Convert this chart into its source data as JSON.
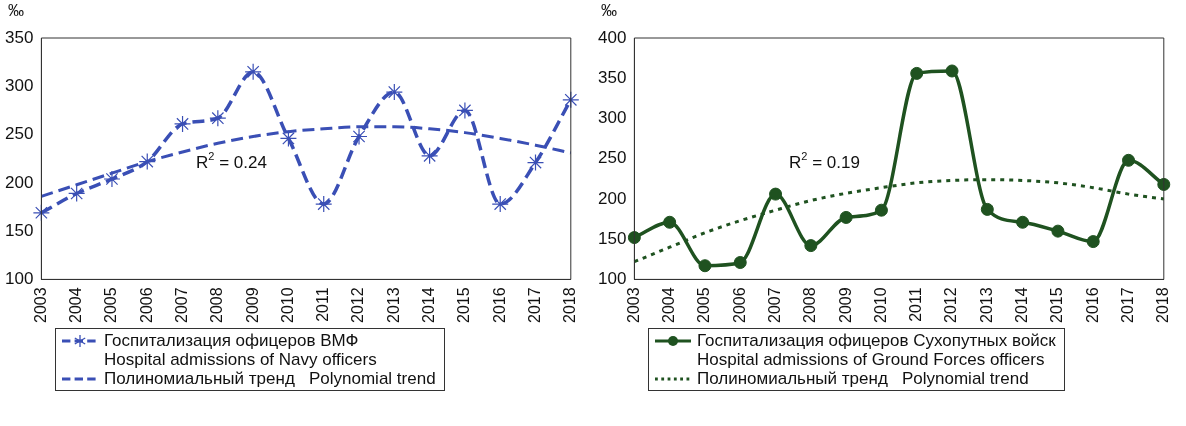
{
  "chart_data": [
    {
      "type": "line",
      "ylabel": "‰",
      "categories": [
        "2003",
        "2004",
        "2005",
        "2006",
        "2007",
        "2008",
        "2009",
        "2010",
        "2011",
        "2012",
        "2013",
        "2014",
        "2015",
        "2016",
        "2017",
        "2018"
      ],
      "ylim": [
        100,
        350
      ],
      "yticks": [
        100,
        150,
        200,
        250,
        300,
        350
      ],
      "grid": false,
      "legend": "bottom",
      "series": [
        {
          "name": "Госпитализация офицеров ВМФ\nHospital admissions of Navy officers",
          "color": "#3a4fb5",
          "marker": "cross",
          "line_style": "dashed",
          "values": [
            169,
            189,
            204,
            222,
            261,
            267,
            315,
            246,
            178,
            248,
            294,
            228,
            275,
            178,
            221,
            286
          ]
        },
        {
          "name": "Полиномиальный тренд   Polynomial trend",
          "color": "#3a4fb5",
          "marker": "none",
          "line_style": "dashed",
          "values": [
            186,
            198,
            210,
            222,
            232,
            241,
            248,
            253,
            256,
            258,
            258,
            256,
            252,
            246,
            239,
            231
          ]
        }
      ],
      "annotations": [
        "R$^{2}$ = 0.24"
      ]
    },
    {
      "type": "line",
      "ylabel": "‰",
      "categories": [
        "2003",
        "2004",
        "2005",
        "2006",
        "2007",
        "2008",
        "2009",
        "2010",
        "2011",
        "2012",
        "2013",
        "2014",
        "2015",
        "2016",
        "2017",
        "2018"
      ],
      "ylim": [
        100,
        400
      ],
      "yticks": [
        100,
        150,
        200,
        250,
        300,
        350,
        400
      ],
      "grid": false,
      "legend": "bottom",
      "series": [
        {
          "name": "Госпитализация офицеров Сухопутных войск\nHospital admissions of Ground Forces officers",
          "color": "#1f5220",
          "marker": "circle",
          "line_style": "solid",
          "values": [
            152,
            171,
            117,
            121,
            206,
            142,
            177,
            186,
            356,
            359,
            187,
            171,
            160,
            147,
            248,
            218
          ]
        },
        {
          "name": "Полиномиальный тренд   Polynomial trend",
          "color": "#1f5220",
          "marker": "none",
          "line_style": "dotted",
          "values": [
            122,
            140,
            158,
            173,
            186,
            198,
            207,
            214,
            220,
            223,
            224,
            223,
            220,
            214,
            206,
            200
          ]
        }
      ],
      "annotations": [
        "R$^{2}$ = 0.19"
      ]
    }
  ]
}
